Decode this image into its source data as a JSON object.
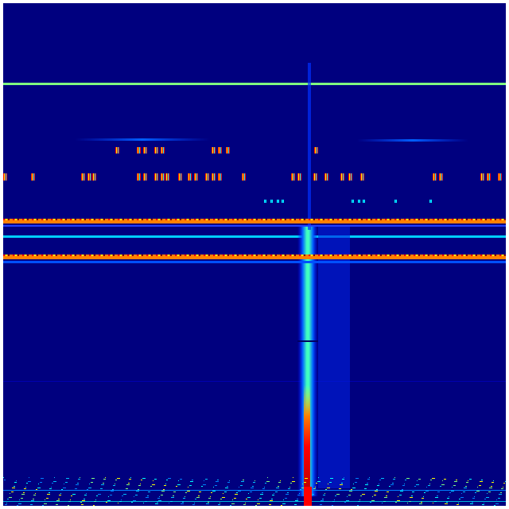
{
  "spectrogram": {
    "colormap": "jet",
    "colors": {
      "background": "#00007f",
      "low": "#0000ff",
      "mid_low": "#0080ff",
      "cyan": "#00ffff",
      "green": "#80ff80",
      "yellow": "#ffff00",
      "orange": "#ff8000",
      "red": "#ff0000",
      "dark_red": "#800000"
    }
  }
}
